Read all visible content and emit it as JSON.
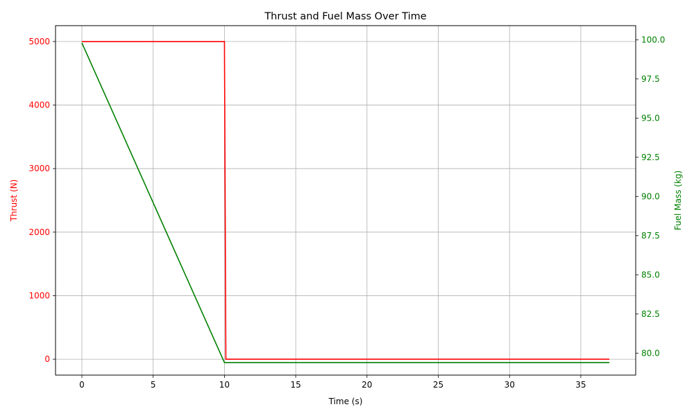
{
  "chart_data": {
    "type": "line",
    "title": "Thrust and Fuel Mass Over Time",
    "xlabel": "Time (s)",
    "ylabel_left": "Thrust (N)",
    "ylabel_right": "Fuel Mass (kg)",
    "xlim": [
      -1.85,
      38.85
    ],
    "ylim_left": [
      -250,
      5250
    ],
    "ylim_right": [
      78.6,
      100.9
    ],
    "x_ticks": [
      0,
      5,
      10,
      15,
      20,
      25,
      30,
      35
    ],
    "x_tick_labels": [
      "0",
      "5",
      "10",
      "15",
      "20",
      "25",
      "30",
      "35"
    ],
    "y_left_ticks": [
      0,
      1000,
      2000,
      3000,
      4000,
      5000
    ],
    "y_left_tick_labels": [
      "0",
      "1000",
      "2000",
      "3000",
      "4000",
      "5000"
    ],
    "y_right_ticks": [
      80.0,
      82.5,
      85.0,
      87.5,
      90.0,
      92.5,
      95.0,
      97.5,
      100.0
    ],
    "y_right_tick_labels": [
      "80.0",
      "82.5",
      "85.0",
      "87.5",
      "90.0",
      "92.5",
      "95.0",
      "97.5",
      "100.0"
    ],
    "grid": true,
    "series": [
      {
        "axis": "left",
        "color": "#ff0000",
        "points": [
          [
            0,
            5000
          ],
          [
            10,
            5000
          ],
          [
            10.1,
            0
          ],
          [
            37,
            0
          ]
        ]
      },
      {
        "axis": "right",
        "color": "#008000",
        "points": [
          [
            0,
            99.8
          ],
          [
            10,
            79.4
          ],
          [
            37,
            79.4
          ]
        ]
      }
    ],
    "colors": {
      "left_axis": "#ff0000",
      "right_axis": "#008000",
      "grid": "#b0b0b0",
      "text": "#000000"
    }
  }
}
